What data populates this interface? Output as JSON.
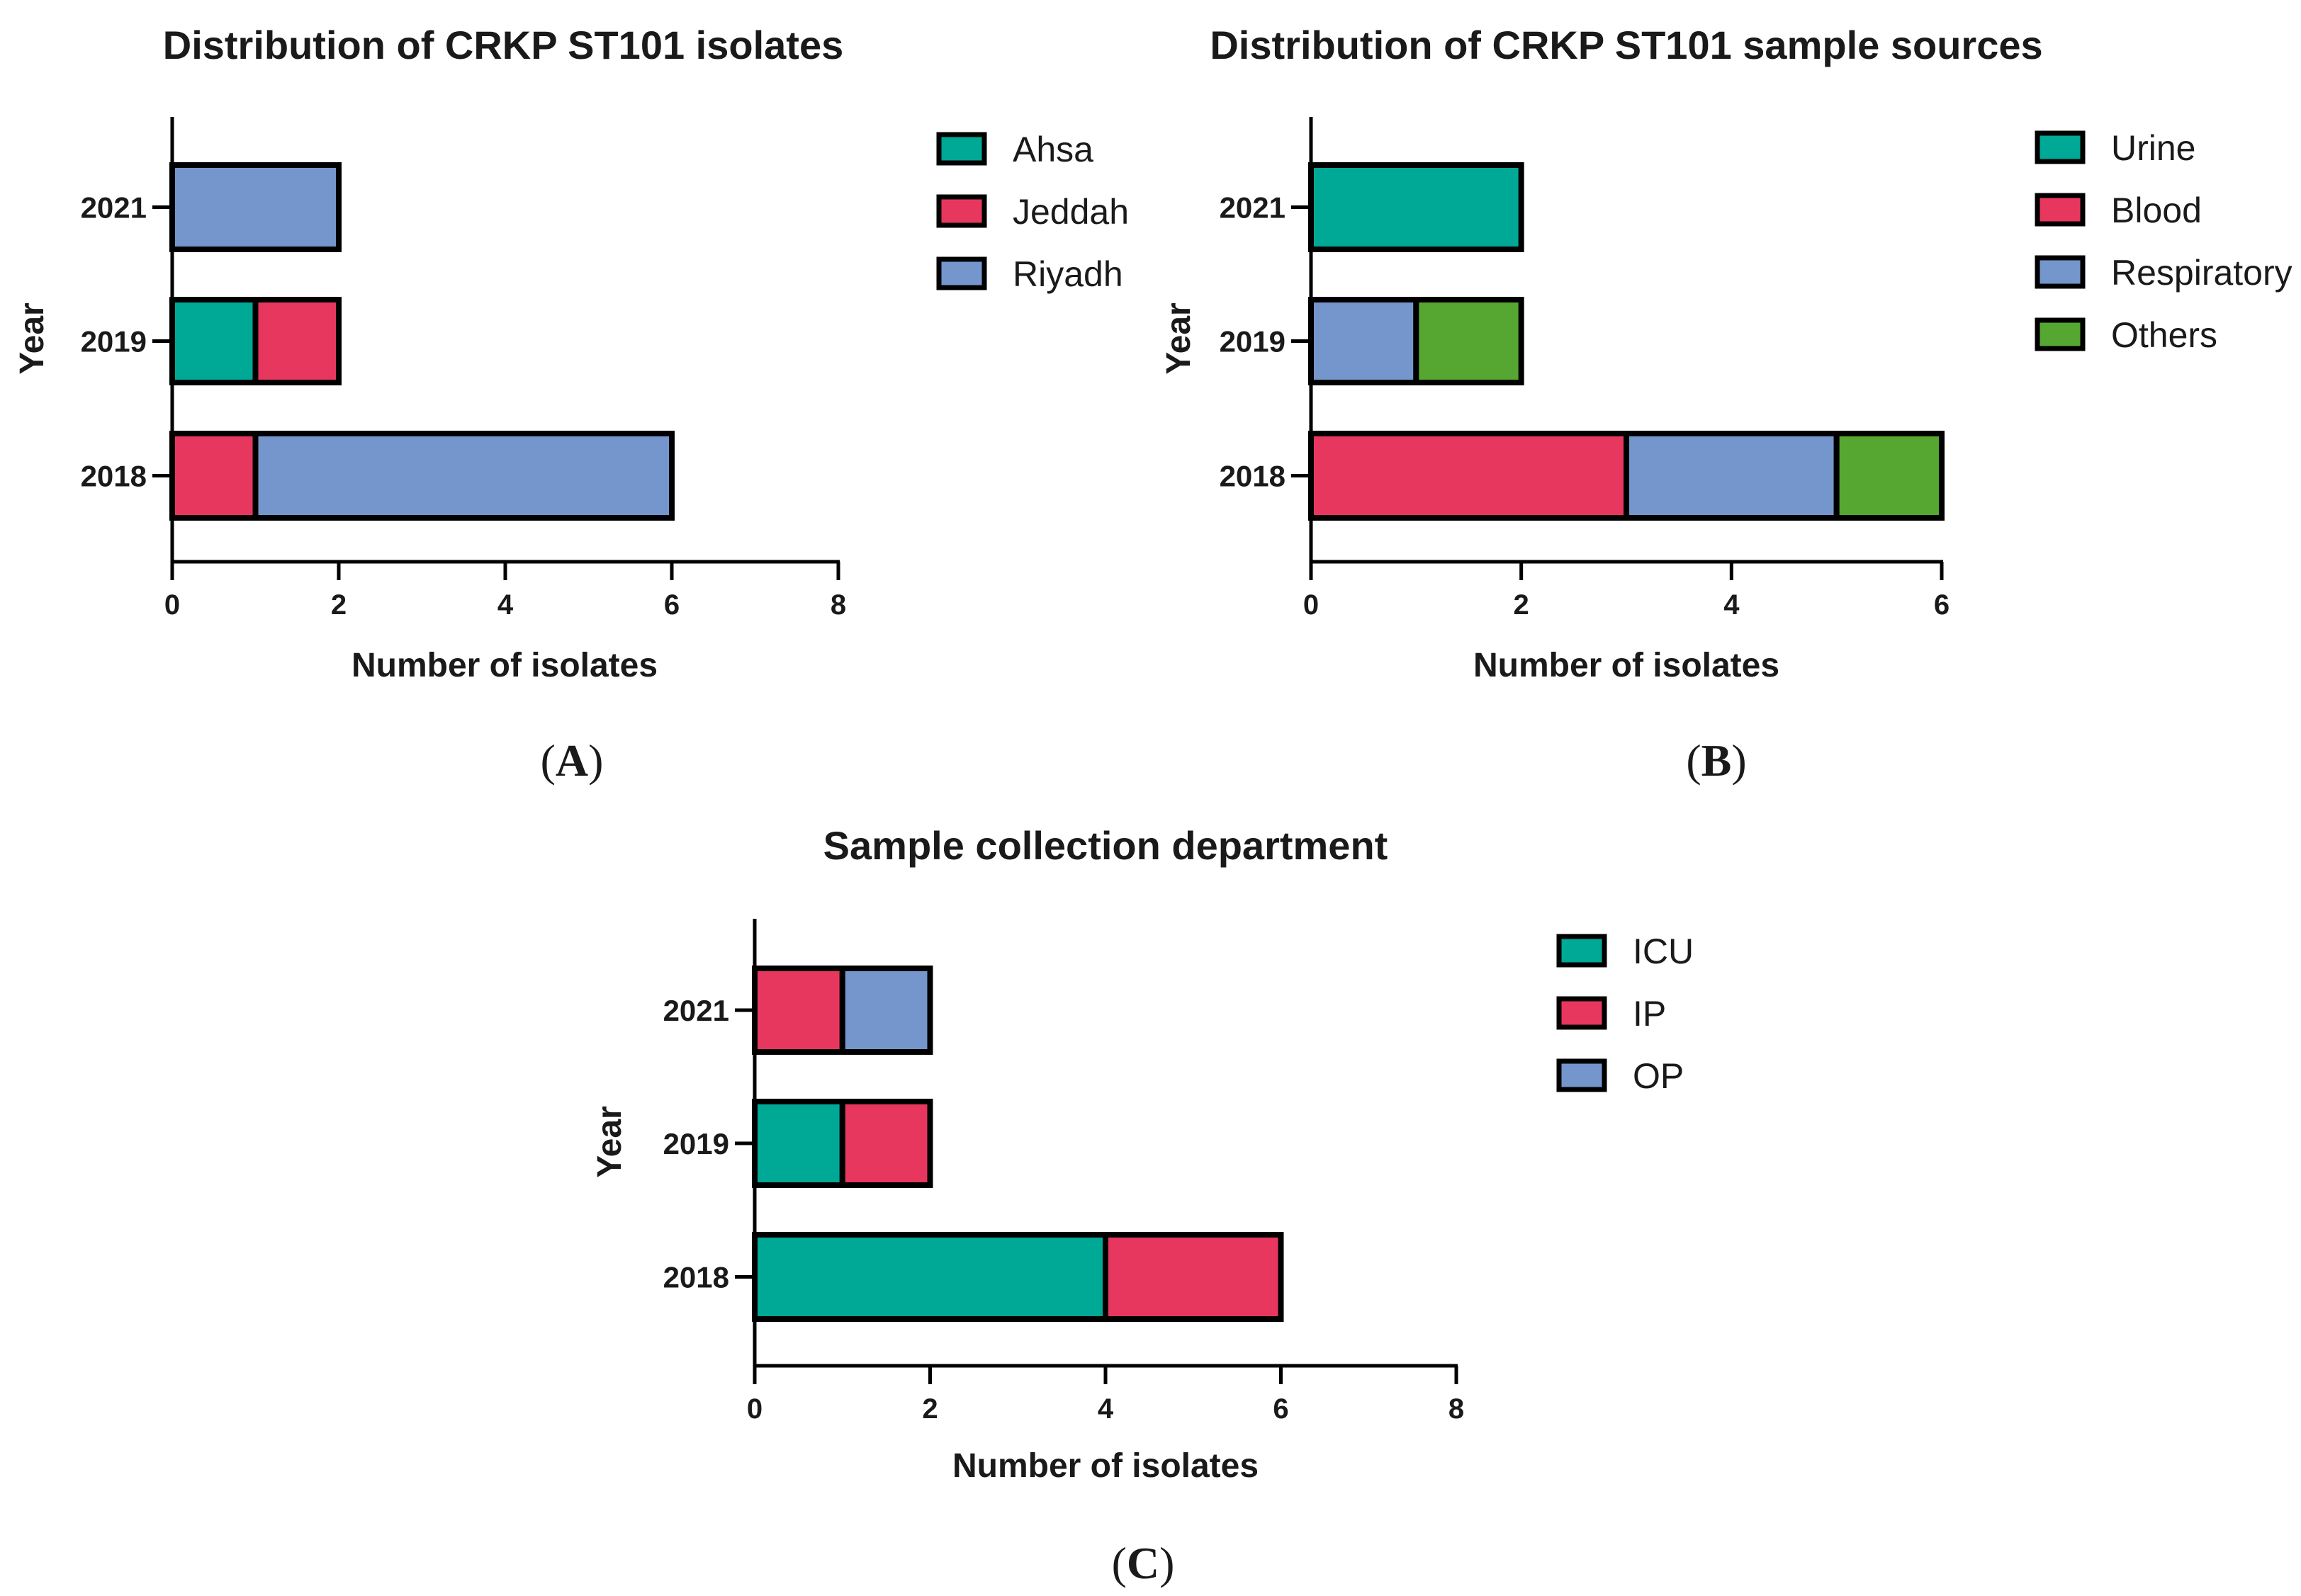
{
  "chart_data": [
    {
      "id": "A",
      "type": "bar",
      "orientation": "horizontal",
      "stacked": true,
      "title": "Distribution of CRKP ST101 isolates",
      "xlabel": "Number of isolates",
      "ylabel": "Year",
      "categories": [
        "2021",
        "2019",
        "2018"
      ],
      "xlim": [
        0,
        8
      ],
      "xticks": [
        "0",
        "2",
        "4",
        "6",
        "8"
      ],
      "series": [
        {
          "name": "Ahsa",
          "color": "#00a896",
          "values": [
            0,
            1,
            0
          ]
        },
        {
          "name": "Jeddah",
          "color": "#e8375f",
          "values": [
            0,
            1,
            1
          ]
        },
        {
          "name": "Riyadh",
          "color": "#7496cc",
          "values": [
            2,
            0,
            5
          ]
        }
      ],
      "panel_label": "A"
    },
    {
      "id": "B",
      "type": "bar",
      "orientation": "horizontal",
      "stacked": true,
      "title": "Distribution of CRKP ST101 sample sources",
      "xlabel": "Number of isolates",
      "ylabel": "Year",
      "categories": [
        "2021",
        "2019",
        "2018"
      ],
      "xlim": [
        0,
        6
      ],
      "xticks": [
        "0",
        "2",
        "4",
        "6"
      ],
      "series": [
        {
          "name": "Urine",
          "color": "#00a896",
          "values": [
            2,
            0,
            0
          ]
        },
        {
          "name": "Blood",
          "color": "#e8375f",
          "values": [
            0,
            0,
            3
          ]
        },
        {
          "name": "Respiratory",
          "color": "#7496cc",
          "values": [
            0,
            1,
            2
          ]
        },
        {
          "name": "Others",
          "color": "#56a632",
          "values": [
            0,
            1,
            1
          ]
        }
      ],
      "panel_label": "B"
    },
    {
      "id": "C",
      "type": "bar",
      "orientation": "horizontal",
      "stacked": true,
      "title": "Sample collection department",
      "xlabel": "Number of isolates",
      "ylabel": "Year",
      "categories": [
        "2021",
        "2019",
        "2018"
      ],
      "xlim": [
        0,
        8
      ],
      "xticks": [
        "0",
        "2",
        "4",
        "6",
        "8"
      ],
      "series": [
        {
          "name": "ICU",
          "color": "#00a896",
          "values": [
            0,
            1,
            4
          ]
        },
        {
          "name": "IP",
          "color": "#e8375f",
          "values": [
            1,
            1,
            2
          ]
        },
        {
          "name": "OP",
          "color": "#7496cc",
          "values": [
            1,
            0,
            0
          ]
        }
      ],
      "panel_label": "C"
    }
  ]
}
